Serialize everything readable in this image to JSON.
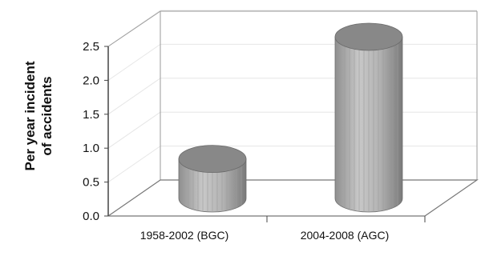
{
  "chart_data": {
    "type": "bar",
    "categories": [
      "1958-2002 (BGC)",
      "2004-2008 (AGC)"
    ],
    "values": [
      0.7,
      2.5
    ],
    "ylabel": "Per year incident of accidents",
    "ylabel_lines": [
      "Per year incident",
      "of accidents"
    ],
    "ylim": [
      0,
      2.5
    ],
    "yticks": [
      "0.0",
      "0.5",
      "1.0",
      "1.5",
      "2.0",
      "2.5"
    ],
    "grid": true,
    "style": "3d-cylinder",
    "colors": {
      "bar": "#b0b0b0",
      "bar_top": "#888888",
      "axis": "#444444",
      "grid": "#e6e6e6"
    }
  }
}
